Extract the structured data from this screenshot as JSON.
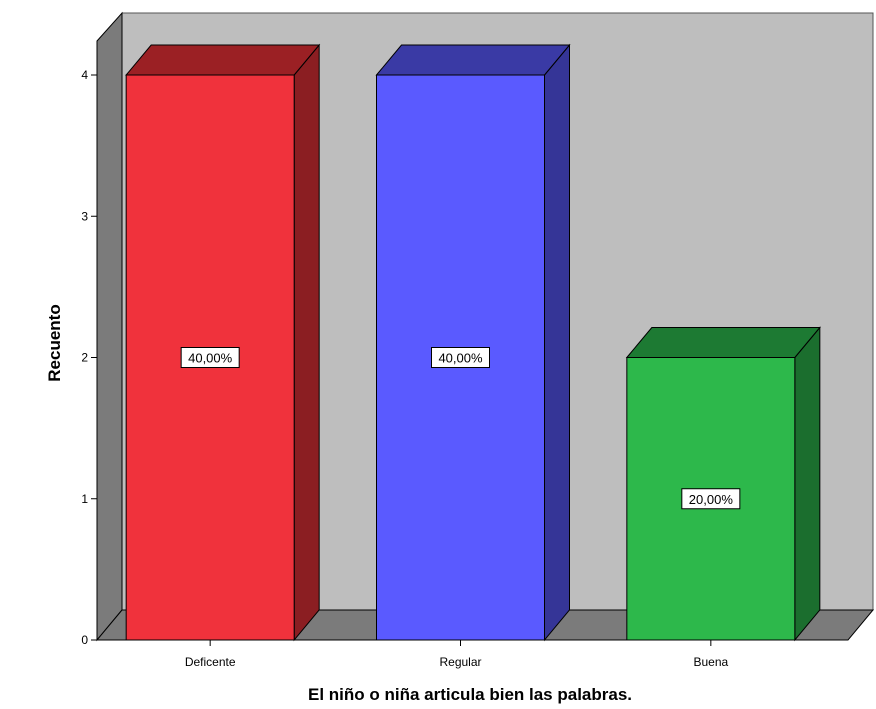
{
  "chart_data": {
    "type": "bar",
    "style": "3d",
    "categories": [
      "Deficente",
      "Regular",
      "Buena"
    ],
    "values": [
      4,
      4,
      2
    ],
    "data_labels": [
      "40,00%",
      "40,00%",
      "20,00%"
    ],
    "title": "",
    "xlabel": "El niño o niña articula bien las palabras.",
    "ylabel": "Recuento",
    "ylim": [
      0,
      4
    ],
    "yticks": [
      0,
      1,
      2,
      3,
      4
    ],
    "grid": false,
    "legend": "none",
    "colors": {
      "bars_front": [
        "#f0323c",
        "#5a5aff",
        "#2db84b"
      ],
      "bars_side": [
        "#8b1e22",
        "#353597",
        "#1b6e2e"
      ],
      "bars_top": [
        "#9b2024",
        "#3a3aa5",
        "#1d7a33"
      ],
      "back_wall": "#bebebe",
      "side_wall": "#7b7b7b",
      "floor": "#7b7b7b",
      "outline": "#000000"
    }
  }
}
